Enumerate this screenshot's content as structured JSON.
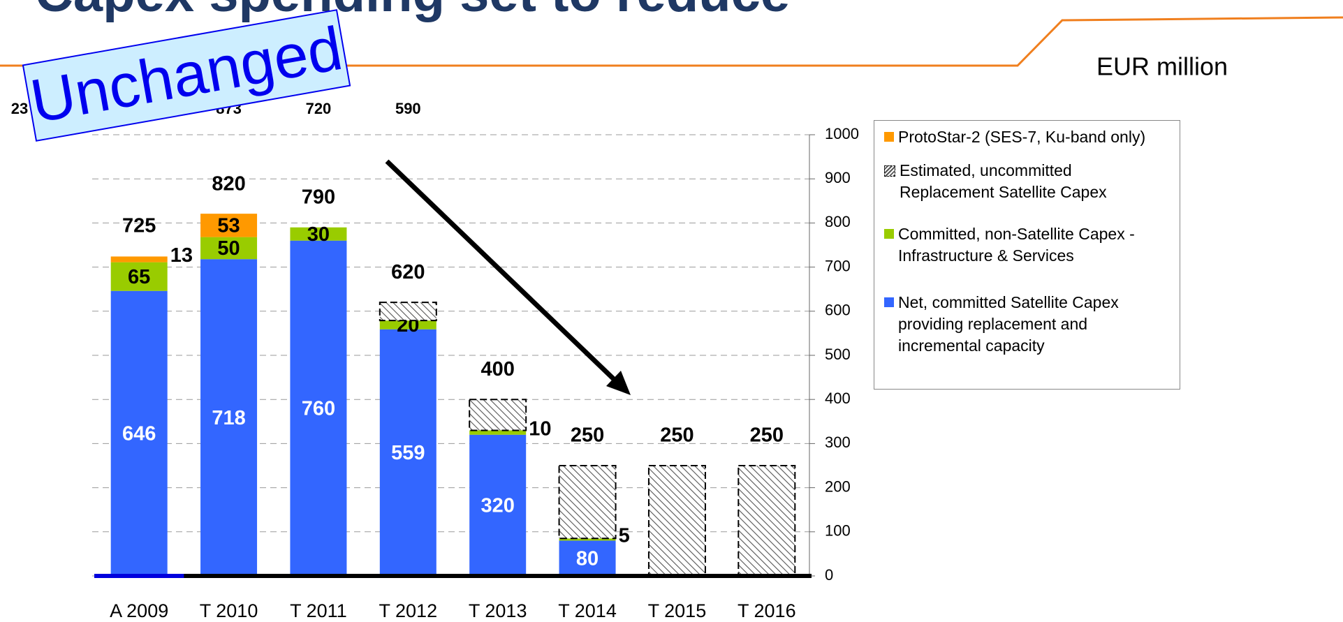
{
  "chart_data": {
    "type": "bar",
    "stacked": true,
    "title": "Capex spending set to reduce",
    "unit_label": "EUR million",
    "stamp": "Unchanged",
    "previous_totals": [
      "23",
      "873",
      "720",
      "590"
    ],
    "categories": [
      "A 2009",
      "T 2010",
      "T 2011",
      "T 2012",
      "T 2013",
      "T 2014",
      "T 2015",
      "T 2016"
    ],
    "totals": [
      725,
      820,
      790,
      620,
      400,
      250,
      250,
      250
    ],
    "series": [
      {
        "name": "Net, committed Satellite Capex providing replacement and incremental capacity",
        "color": "#3366ff",
        "label_color": "#ffffff",
        "values": [
          646,
          718,
          760,
          559,
          320,
          80,
          null,
          null
        ]
      },
      {
        "name": "Committed, non-Satellite Capex - Infrastructure & Services",
        "color": "#99cc00",
        "label_color": "#000000",
        "values": [
          65,
          50,
          30,
          20,
          10,
          5,
          null,
          null
        ]
      },
      {
        "name": "Estimated, uncommitted Replacement Satellite Capex",
        "color": "#555555",
        "pattern": "hatch",
        "values": [
          null,
          null,
          null,
          41,
          70,
          165,
          250,
          250
        ]
      },
      {
        "name": "ProtoStar-2 (SES-7, Ku-band only)",
        "color": "#ff9900",
        "label_color": "#000000",
        "values": [
          13,
          53,
          null,
          null,
          null,
          null,
          null,
          null
        ]
      }
    ],
    "ylim": [
      0,
      1000
    ],
    "yticks": [
      0,
      100,
      200,
      300,
      400,
      500,
      600,
      700,
      800,
      900,
      1000
    ],
    "grid": true,
    "y_axis_side": "right"
  }
}
